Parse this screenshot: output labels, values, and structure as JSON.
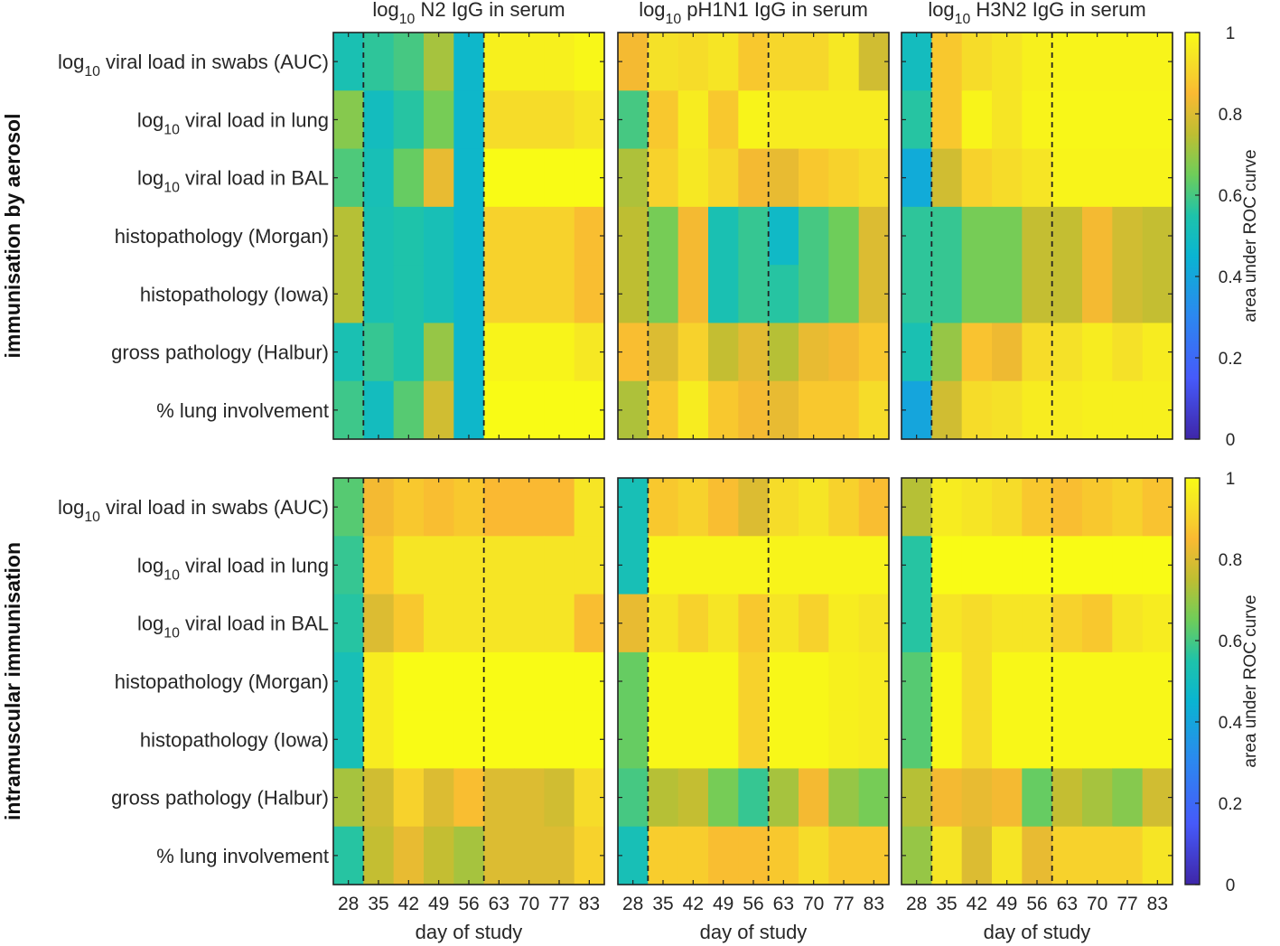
{
  "chart_data": {
    "type": "heatmap",
    "columns": [
      "28",
      "35",
      "42",
      "49",
      "56",
      "63",
      "70",
      "77",
      "83"
    ],
    "rows": [
      "log10 viral load in swabs (AUC)",
      "log10 viral load in lung",
      "log10 viral load in BAL",
      "histopathology (Morgan)",
      "histopathology (Iowa)",
      "gross pathology (Halbur)",
      "% lung involvement"
    ],
    "panel_titles": [
      "log10 N2 IgG in serum",
      "log10 pH1N1 IgG in serum",
      "log10 H3N2 IgG in serum"
    ],
    "groups": [
      "immunisation by aerosol",
      "intramuscular immunisation"
    ],
    "xlabel": "day of study",
    "colorbar": {
      "label": "area under ROC curve",
      "range": [
        0,
        1
      ],
      "ticks": [
        "0",
        "0.2",
        "0.4",
        "0.6",
        "0.8",
        "1"
      ]
    },
    "vlines_after_column": [
      0,
      4
    ],
    "colors": {
      "low": "#3e26a8",
      "mid": "#14bac1",
      "high": "#f9fb15",
      "line": "#222222"
    },
    "matrices": [
      {
        "group": "immunisation by aerosol",
        "antibody": "log10 N2 IgG in serum",
        "values": [
          [
            0.53,
            0.57,
            0.6,
            0.72,
            0.47,
            0.97,
            0.97,
            0.97,
            0.99
          ],
          [
            0.68,
            0.5,
            0.56,
            0.66,
            0.47,
            0.92,
            0.92,
            0.92,
            0.94
          ],
          [
            0.61,
            0.52,
            0.64,
            0.82,
            0.47,
            1.0,
            1.0,
            1.0,
            1.0
          ],
          [
            0.74,
            0.53,
            0.55,
            0.52,
            0.47,
            0.9,
            0.9,
            0.9,
            0.86
          ],
          [
            0.74,
            0.53,
            0.55,
            0.52,
            0.47,
            0.9,
            0.9,
            0.9,
            0.86
          ],
          [
            0.53,
            0.58,
            0.55,
            0.7,
            0.47,
            0.98,
            0.98,
            0.98,
            0.95
          ],
          [
            0.59,
            0.5,
            0.62,
            0.78,
            0.47,
            1.0,
            1.0,
            1.0,
            1.0
          ]
        ]
      },
      {
        "group": "immunisation by aerosol",
        "antibody": "log10 pH1N1 IgG in serum",
        "values": [
          [
            0.84,
            0.93,
            0.92,
            0.94,
            0.88,
            0.91,
            0.91,
            0.95,
            0.78
          ],
          [
            0.6,
            0.88,
            0.96,
            0.88,
            0.98,
            0.96,
            0.96,
            0.96,
            0.96
          ],
          [
            0.73,
            0.9,
            0.95,
            0.91,
            0.84,
            0.82,
            0.88,
            0.9,
            0.92
          ],
          [
            0.75,
            0.66,
            0.84,
            0.53,
            0.58,
            0.48,
            0.6,
            0.65,
            0.8
          ],
          [
            0.75,
            0.66,
            0.84,
            0.53,
            0.58,
            0.56,
            0.6,
            0.65,
            0.8
          ],
          [
            0.86,
            0.8,
            0.9,
            0.76,
            0.81,
            0.74,
            0.82,
            0.84,
            0.88
          ],
          [
            0.73,
            0.88,
            0.96,
            0.88,
            0.84,
            0.82,
            0.88,
            0.88,
            0.92
          ]
        ]
      },
      {
        "group": "immunisation by aerosol",
        "antibody": "log10 H3N2 IgG in serum",
        "values": [
          [
            0.5,
            0.88,
            0.92,
            0.94,
            0.97,
            0.98,
            0.98,
            0.98,
            0.98
          ],
          [
            0.56,
            0.88,
            0.98,
            0.94,
            0.98,
            0.99,
            0.99,
            0.99,
            0.99
          ],
          [
            0.42,
            0.78,
            0.9,
            0.92,
            0.94,
            0.98,
            0.98,
            0.98,
            0.98
          ],
          [
            0.57,
            0.58,
            0.66,
            0.66,
            0.76,
            0.76,
            0.84,
            0.78,
            0.76
          ],
          [
            0.57,
            0.58,
            0.66,
            0.66,
            0.76,
            0.76,
            0.84,
            0.78,
            0.76
          ],
          [
            0.53,
            0.7,
            0.87,
            0.83,
            0.92,
            0.93,
            0.96,
            0.93,
            0.96
          ],
          [
            0.4,
            0.78,
            0.92,
            0.93,
            0.96,
            0.96,
            0.97,
            0.97,
            0.97
          ]
        ]
      },
      {
        "group": "intramuscular immunisation",
        "antibody": "log10 N2 IgG in serum",
        "values": [
          [
            0.62,
            0.84,
            0.88,
            0.86,
            0.88,
            0.85,
            0.85,
            0.85,
            0.94
          ],
          [
            0.58,
            0.88,
            0.94,
            0.94,
            0.94,
            0.94,
            0.94,
            0.94,
            0.94
          ],
          [
            0.56,
            0.8,
            0.88,
            0.94,
            0.94,
            0.94,
            0.94,
            0.94,
            0.86
          ],
          [
            0.52,
            0.96,
            1.0,
            1.0,
            1.0,
            1.0,
            1.0,
            1.0,
            1.0
          ],
          [
            0.52,
            0.96,
            1.0,
            1.0,
            1.0,
            1.0,
            1.0,
            1.0,
            1.0
          ],
          [
            0.72,
            0.78,
            0.9,
            0.8,
            0.86,
            0.8,
            0.8,
            0.78,
            0.92
          ],
          [
            0.56,
            0.76,
            0.82,
            0.76,
            0.72,
            0.8,
            0.8,
            0.8,
            0.9
          ]
        ]
      },
      {
        "group": "intramuscular immunisation",
        "antibody": "log10 pH1N1 IgG in serum",
        "values": [
          [
            0.52,
            0.88,
            0.9,
            0.86,
            0.8,
            0.92,
            0.94,
            0.9,
            0.86
          ],
          [
            0.52,
            0.98,
            0.98,
            0.98,
            0.98,
            0.98,
            0.98,
            0.98,
            0.98
          ],
          [
            0.82,
            0.94,
            0.9,
            0.94,
            0.88,
            0.94,
            0.9,
            0.96,
            0.94
          ],
          [
            0.64,
            0.99,
            0.99,
            0.99,
            0.9,
            0.99,
            0.99,
            0.97,
            0.96
          ],
          [
            0.64,
            0.99,
            0.99,
            0.99,
            0.9,
            0.99,
            0.99,
            0.97,
            0.96
          ],
          [
            0.6,
            0.74,
            0.76,
            0.66,
            0.58,
            0.72,
            0.84,
            0.7,
            0.66
          ],
          [
            0.52,
            0.89,
            0.89,
            0.86,
            0.86,
            0.88,
            0.92,
            0.88,
            0.88
          ]
        ]
      },
      {
        "group": "intramuscular immunisation",
        "antibody": "log10 H3N2 IgG in serum",
        "values": [
          [
            0.74,
            0.96,
            0.94,
            0.92,
            0.88,
            0.86,
            0.88,
            0.9,
            0.87
          ],
          [
            0.56,
            1.0,
            1.0,
            1.0,
            1.0,
            1.0,
            1.0,
            1.0,
            1.0
          ],
          [
            0.56,
            0.94,
            0.92,
            0.94,
            0.94,
            0.9,
            0.88,
            0.94,
            0.96
          ],
          [
            0.62,
            0.99,
            0.92,
            0.99,
            0.99,
            0.99,
            0.99,
            0.99,
            0.99
          ],
          [
            0.62,
            0.99,
            0.92,
            0.99,
            0.99,
            0.99,
            0.99,
            0.99,
            0.99
          ],
          [
            0.74,
            0.84,
            0.82,
            0.84,
            0.64,
            0.76,
            0.72,
            0.68,
            0.78
          ],
          [
            0.7,
            0.94,
            0.8,
            0.94,
            0.82,
            0.9,
            0.9,
            0.9,
            0.94
          ]
        ]
      }
    ]
  }
}
